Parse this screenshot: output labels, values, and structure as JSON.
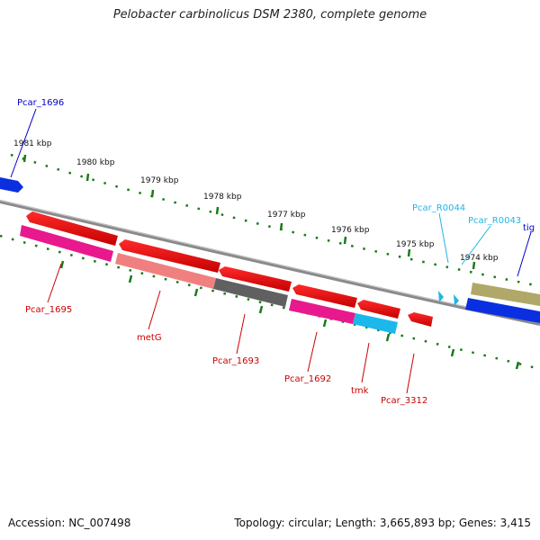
{
  "title": "Pelobacter carbinolicus DSM 2380, complete genome",
  "footer": {
    "accession": "Accession: NC_007498",
    "summary": "Topology: circular; Length: 3,665,893 bp; Genes: 3,415"
  },
  "colors": {
    "backbone": "#8c8c8c",
    "tick": "#1a7a1a",
    "label_red": "#cc0000",
    "label_blue": "#0000c8",
    "label_cyan": "#22b5e6"
  },
  "ruler": {
    "ticks": [
      "1981 kbp",
      "1980 kbp",
      "1979 kbp",
      "1978 kbp",
      "1977 kbp",
      "1976 kbp",
      "1975 kbp",
      "1974 kbp"
    ]
  },
  "genes": [
    {
      "name": "Pcar_1696",
      "color": "#0a2fe0",
      "label_color": "#0000c8"
    },
    {
      "name": "Pcar_1695",
      "color": "#e8198c",
      "label_color": "#cc0000"
    },
    {
      "name": "metG",
      "color": "#f08080",
      "label_color": "#cc0000"
    },
    {
      "name": "Pcar_1693",
      "color": "#606060",
      "label_color": "#cc0000"
    },
    {
      "name": "Pcar_1692",
      "color": "#e8198c",
      "label_color": "#cc0000"
    },
    {
      "name": "tmk",
      "color": "#1cb8ec",
      "label_color": "#cc0000"
    },
    {
      "name": "Pcar_3312",
      "color": "#e01010",
      "label_color": "#cc0000"
    },
    {
      "name": "Pcar_R0044",
      "color": "#22b5e6",
      "label_color": "#22b5e6"
    },
    {
      "name": "Pcar_R0043",
      "color": "#22b5e6",
      "label_color": "#22b5e6"
    },
    {
      "name": "tig",
      "color": "#0a2fe0",
      "label_color": "#0000c8"
    },
    {
      "name": "",
      "color": "#b0a868"
    },
    {
      "name": "",
      "color": "#e01010"
    }
  ]
}
